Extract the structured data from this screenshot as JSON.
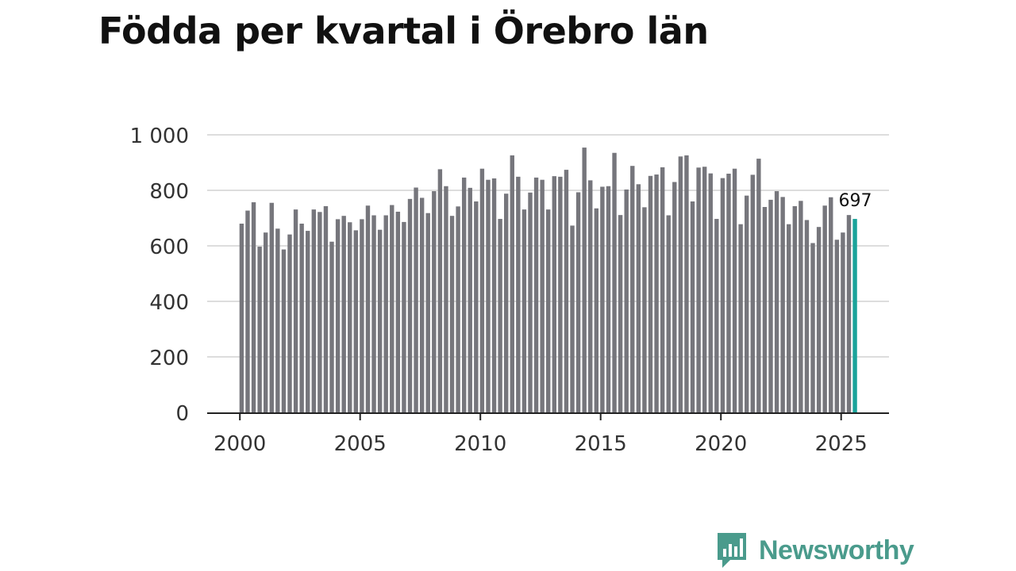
{
  "title": "Födda per kvartal i Örebro län",
  "brand": {
    "name": "Newsworthy",
    "color": "#4a9b8c"
  },
  "colors": {
    "bar": "#76767c",
    "highlight": "#1aa39a",
    "grid": "#dddddd",
    "axis": "#222222"
  },
  "chart_data": {
    "type": "bar",
    "title": "Födda per kvartal i Örebro län",
    "xlabel": "",
    "ylabel": "",
    "ylim": [
      0,
      1000
    ],
    "yticks": [
      0,
      200,
      400,
      600,
      800,
      1000
    ],
    "ytick_labels": [
      "0",
      "200",
      "400",
      "600",
      "800",
      "1 000"
    ],
    "xticks": [
      2000,
      2005,
      2010,
      2015,
      2020,
      2025
    ],
    "xtick_labels": [
      "2000",
      "2005",
      "2010",
      "2015",
      "2020",
      "2025"
    ],
    "grid": true,
    "categories": [
      "2000Q1",
      "2000Q2",
      "2000Q3",
      "2000Q4",
      "2001Q1",
      "2001Q2",
      "2001Q3",
      "2001Q4",
      "2002Q1",
      "2002Q2",
      "2002Q3",
      "2002Q4",
      "2003Q1",
      "2003Q2",
      "2003Q3",
      "2003Q4",
      "2004Q1",
      "2004Q2",
      "2004Q3",
      "2004Q4",
      "2005Q1",
      "2005Q2",
      "2005Q3",
      "2005Q4",
      "2006Q1",
      "2006Q2",
      "2006Q3",
      "2006Q4",
      "2007Q1",
      "2007Q2",
      "2007Q3",
      "2007Q4",
      "2008Q1",
      "2008Q2",
      "2008Q3",
      "2008Q4",
      "2009Q1",
      "2009Q2",
      "2009Q3",
      "2009Q4",
      "2010Q1",
      "2010Q2",
      "2010Q3",
      "2010Q4",
      "2011Q1",
      "2011Q2",
      "2011Q3",
      "2011Q4",
      "2012Q1",
      "2012Q2",
      "2012Q3",
      "2012Q4",
      "2013Q1",
      "2013Q2",
      "2013Q3",
      "2013Q4",
      "2014Q1",
      "2014Q2",
      "2014Q3",
      "2014Q4",
      "2015Q1",
      "2015Q2",
      "2015Q3",
      "2015Q4",
      "2016Q1",
      "2016Q2",
      "2016Q3",
      "2016Q4",
      "2017Q1",
      "2017Q2",
      "2017Q3",
      "2017Q4",
      "2018Q1",
      "2018Q2",
      "2018Q3",
      "2018Q4",
      "2019Q1",
      "2019Q2",
      "2019Q3",
      "2019Q4",
      "2020Q1",
      "2020Q2",
      "2020Q3",
      "2020Q4",
      "2021Q1",
      "2021Q2",
      "2021Q3",
      "2021Q4",
      "2022Q1",
      "2022Q2",
      "2022Q3",
      "2022Q4",
      "2023Q1",
      "2023Q2",
      "2023Q3",
      "2023Q4",
      "2024Q1",
      "2024Q2",
      "2024Q3",
      "2024Q4",
      "2025Q1",
      "2025Q2",
      "2025Q3"
    ],
    "values": [
      680,
      727,
      757,
      597,
      648,
      755,
      662,
      587,
      641,
      731,
      680,
      654,
      731,
      722,
      743,
      615,
      696,
      708,
      685,
      656,
      696,
      745,
      710,
      658,
      710,
      747,
      723,
      686,
      769,
      810,
      773,
      718,
      797,
      876,
      815,
      708,
      742,
      846,
      809,
      760,
      878,
      838,
      843,
      697,
      788,
      926,
      849,
      731,
      792,
      846,
      838,
      731,
      851,
      849,
      874,
      673,
      793,
      954,
      836,
      735,
      813,
      815,
      935,
      711,
      803,
      888,
      822,
      739,
      852,
      857,
      883,
      710,
      830,
      922,
      926,
      760,
      882,
      885,
      861,
      697,
      844,
      860,
      878,
      678,
      781,
      856,
      914,
      740,
      766,
      797,
      776,
      678,
      743,
      762,
      693,
      610,
      668,
      745,
      775,
      622,
      648,
      711,
      697
    ],
    "highlight_index": 102,
    "annotation": {
      "label": "697",
      "category": "2025Q3",
      "value": 697
    }
  }
}
